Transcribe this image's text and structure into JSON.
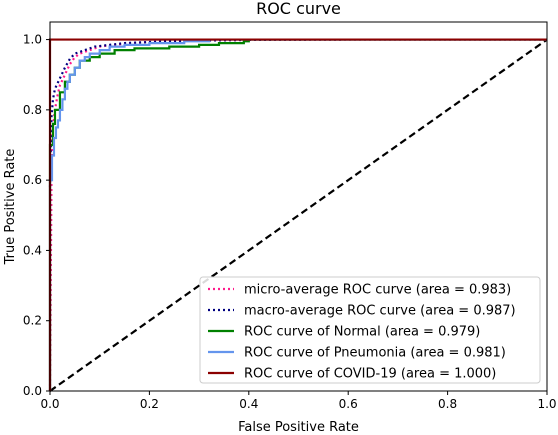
{
  "chart_data": {
    "type": "line",
    "title": "ROC curve",
    "xlabel": "False Positive Rate",
    "ylabel": "True Positive Rate",
    "xlim": [
      0,
      1
    ],
    "ylim": [
      0,
      1.05
    ],
    "xticks": [
      0,
      0.2,
      0.4,
      0.6,
      0.8,
      1
    ],
    "xtick_labels": [
      "0.0",
      "0.2",
      "0.4",
      "0.6",
      "0.8",
      "1.0"
    ],
    "yticks": [
      0,
      0.2,
      0.4,
      0.6,
      0.8,
      1
    ],
    "ytick_labels": [
      "0.0",
      "0.2",
      "0.4",
      "0.6",
      "0.8",
      "1.0"
    ],
    "grid": false,
    "legend_position": "lower-right",
    "series": [
      {
        "name": "micro-average ROC curve (area = 0.983)",
        "color": "#ff1a8c",
        "style": "dotted",
        "x": [
          0,
          0.003,
          0.005,
          0.01,
          0.015,
          0.02,
          0.03,
          0.04,
          0.05,
          0.06,
          0.08,
          0.1,
          0.13,
          0.16,
          0.2,
          0.25,
          0.3,
          0.4,
          0.6,
          1.0
        ],
        "y": [
          0,
          0.62,
          0.74,
          0.8,
          0.84,
          0.87,
          0.9,
          0.93,
          0.95,
          0.96,
          0.97,
          0.98,
          0.985,
          0.99,
          0.993,
          0.995,
          0.997,
          0.999,
          1.0,
          1.0
        ]
      },
      {
        "name": "macro-average ROC curve (area = 0.987)",
        "color": "#000080",
        "style": "dotted",
        "x": [
          0,
          0.003,
          0.006,
          0.01,
          0.02,
          0.03,
          0.04,
          0.05,
          0.07,
          0.09,
          0.12,
          0.15,
          0.2,
          0.3,
          0.4,
          0.6,
          1.0
        ],
        "y": [
          0.58,
          0.78,
          0.83,
          0.86,
          0.89,
          0.92,
          0.945,
          0.96,
          0.97,
          0.98,
          0.985,
          0.99,
          0.993,
          0.997,
          0.999,
          1.0,
          1.0
        ]
      },
      {
        "name": "ROC curve of Normal (area = 0.979)",
        "color": "#008000",
        "style": "solid",
        "x": [
          0,
          0,
          0.006,
          0.006,
          0.01,
          0.01,
          0.02,
          0.02,
          0.03,
          0.03,
          0.04,
          0.04,
          0.05,
          0.05,
          0.06,
          0.06,
          0.08,
          0.08,
          0.1,
          0.1,
          0.13,
          0.13,
          0.17,
          0.17,
          0.24,
          0.24,
          0.3,
          0.3,
          0.34,
          0.34,
          0.39,
          0.39,
          0.4,
          0.4,
          1.0
        ],
        "y": [
          0,
          0.7,
          0.7,
          0.76,
          0.76,
          0.8,
          0.8,
          0.85,
          0.85,
          0.88,
          0.88,
          0.9,
          0.9,
          0.92,
          0.92,
          0.94,
          0.94,
          0.95,
          0.95,
          0.96,
          0.96,
          0.97,
          0.97,
          0.975,
          0.975,
          0.98,
          0.98,
          0.985,
          0.985,
          0.99,
          0.99,
          0.995,
          0.995,
          1.0,
          1.0
        ]
      },
      {
        "name": "ROC curve of Pneumonia (area = 0.981)",
        "color": "#6495ed",
        "style": "solid",
        "x": [
          0,
          0,
          0.004,
          0.004,
          0.008,
          0.008,
          0.012,
          0.012,
          0.016,
          0.016,
          0.02,
          0.02,
          0.025,
          0.025,
          0.03,
          0.03,
          0.035,
          0.035,
          0.04,
          0.04,
          0.05,
          0.05,
          0.06,
          0.06,
          0.07,
          0.07,
          0.08,
          0.08,
          0.1,
          0.1,
          0.12,
          0.12,
          0.15,
          0.15,
          0.2,
          0.2,
          0.27,
          0.27,
          0.32,
          0.32,
          1.0
        ],
        "y": [
          0,
          0.6,
          0.6,
          0.67,
          0.67,
          0.72,
          0.72,
          0.75,
          0.75,
          0.77,
          0.77,
          0.8,
          0.8,
          0.83,
          0.83,
          0.86,
          0.86,
          0.88,
          0.88,
          0.9,
          0.9,
          0.92,
          0.92,
          0.94,
          0.94,
          0.95,
          0.95,
          0.96,
          0.96,
          0.97,
          0.97,
          0.98,
          0.98,
          0.985,
          0.985,
          0.99,
          0.99,
          0.995,
          0.995,
          1.0,
          1.0
        ]
      },
      {
        "name": "ROC curve of COVID-19 (area = 1.000)",
        "color": "#8b0000",
        "style": "solid",
        "x": [
          0,
          0,
          1.0
        ],
        "y": [
          0,
          1.0,
          1.0
        ]
      }
    ],
    "reference_line": {
      "color": "#000000",
      "style": "dashed",
      "x": [
        0,
        1
      ],
      "y": [
        0,
        1
      ]
    }
  }
}
